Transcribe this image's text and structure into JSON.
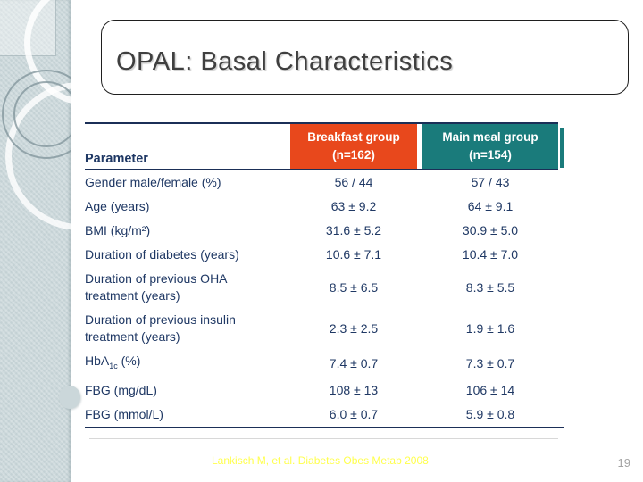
{
  "slide": {
    "title": "OPAL: Basal Characteristics",
    "footer_citation": "Lankisch M, et al. Diabetes Obes Metab 2008",
    "page_number": "19"
  },
  "table": {
    "parameter_header": "Parameter",
    "group_headers": [
      {
        "line1": "Breakfast group",
        "line2": "(n=162)"
      },
      {
        "line1": "Main meal group",
        "line2": "(n=154)"
      }
    ],
    "rows": [
      {
        "parameter": "Gender male/female (%)",
        "breakfast": "56 / 44",
        "main_meal": "57 / 43"
      },
      {
        "parameter": "Age (years)",
        "breakfast": "63 ± 9.2",
        "main_meal": "64 ± 9.1"
      },
      {
        "parameter": "BMI (kg/m²)",
        "breakfast": "31.6 ± 5.2",
        "main_meal": "30.9 ± 5.0"
      },
      {
        "parameter": "Duration of diabetes (years)",
        "breakfast": "10.6 ± 7.1",
        "main_meal": "10.4 ± 7.0"
      },
      {
        "parameter": "Duration of previous OHA treatment (years)",
        "breakfast": "8.5 ± 6.5",
        "main_meal": "8.3 ± 5.5"
      },
      {
        "parameter": "Duration of previous insulin treatment (years)",
        "breakfast": "2.3 ± 2.5",
        "main_meal": "1.9 ± 1.6"
      },
      {
        "parameter": "HbA~1c~ (%)",
        "breakfast": "7.4 ± 0.7",
        "main_meal": "7.3 ± 0.7"
      },
      {
        "parameter": "FBG (mg/dL)",
        "breakfast": "108 ± 13",
        "main_meal": "106 ± 14"
      },
      {
        "parameter": "FBG (mmol/L)",
        "breakfast": "6.0 ± 0.7",
        "main_meal": "5.9 ± 0.8"
      }
    ]
  },
  "colors": {
    "breakfast_header_bg": "#e8481c",
    "main_meal_header_bg": "#1a7b7b",
    "table_text": "#1f3864",
    "table_rule": "#1b2f57",
    "footer_yellow": "#ffff4d",
    "page_number_gray": "#a3a3a3",
    "sidebar_bg": "#cbd7da"
  }
}
